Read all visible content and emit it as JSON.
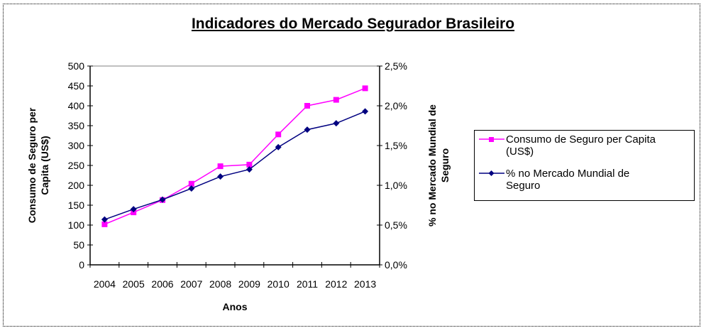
{
  "chart_data": {
    "type": "line",
    "title": "Indicadores do Mercado Segurador Brasileiro",
    "xlabel": "Anos",
    "ylabel": "Consumo de Seguro per Capita (US$)",
    "y2label": "% no Mercado Mundial de Seguro",
    "categories": [
      "2004",
      "2005",
      "2006",
      "2007",
      "2008",
      "2009",
      "2010",
      "2011",
      "2012",
      "2013"
    ],
    "ylim": [
      0,
      500
    ],
    "y_ticks": [
      "0",
      "50",
      "100",
      "150",
      "200",
      "250",
      "300",
      "350",
      "400",
      "450",
      "500"
    ],
    "y2lim": [
      0,
      2.5
    ],
    "y2_ticks": [
      "0,0%",
      "0,5%",
      "1,0%",
      "1,5%",
      "2,0%",
      "2,5%"
    ],
    "grid": false,
    "legend_position": "right",
    "series": [
      {
        "name": "Consumo de Seguro per Capita (US$)",
        "axis": "left",
        "color": "#ff00ff",
        "marker": "square",
        "values": [
          102,
          132,
          163,
          204,
          248,
          252,
          328,
          400,
          415,
          444
        ]
      },
      {
        "name": "% no Mercado Mundial de Seguro",
        "axis": "right",
        "color": "#000080",
        "marker": "diamond",
        "values": [
          0.57,
          0.7,
          0.82,
          0.96,
          1.11,
          1.2,
          1.48,
          1.7,
          1.78,
          1.93
        ]
      }
    ]
  },
  "legend": {
    "item1_line1": "Consumo de Seguro per Capita",
    "item1_line2": "(US$)",
    "item2_line1": "% no Mercado Mundial de",
    "item2_line2": "Seguro"
  },
  "axis": {
    "y_label_line1": "Consumo de Seguro per",
    "y_label_line2": "Capita (US$)",
    "y2_label_line1": "% no Mercado Mundial de",
    "y2_label_line2": "Seguro"
  }
}
